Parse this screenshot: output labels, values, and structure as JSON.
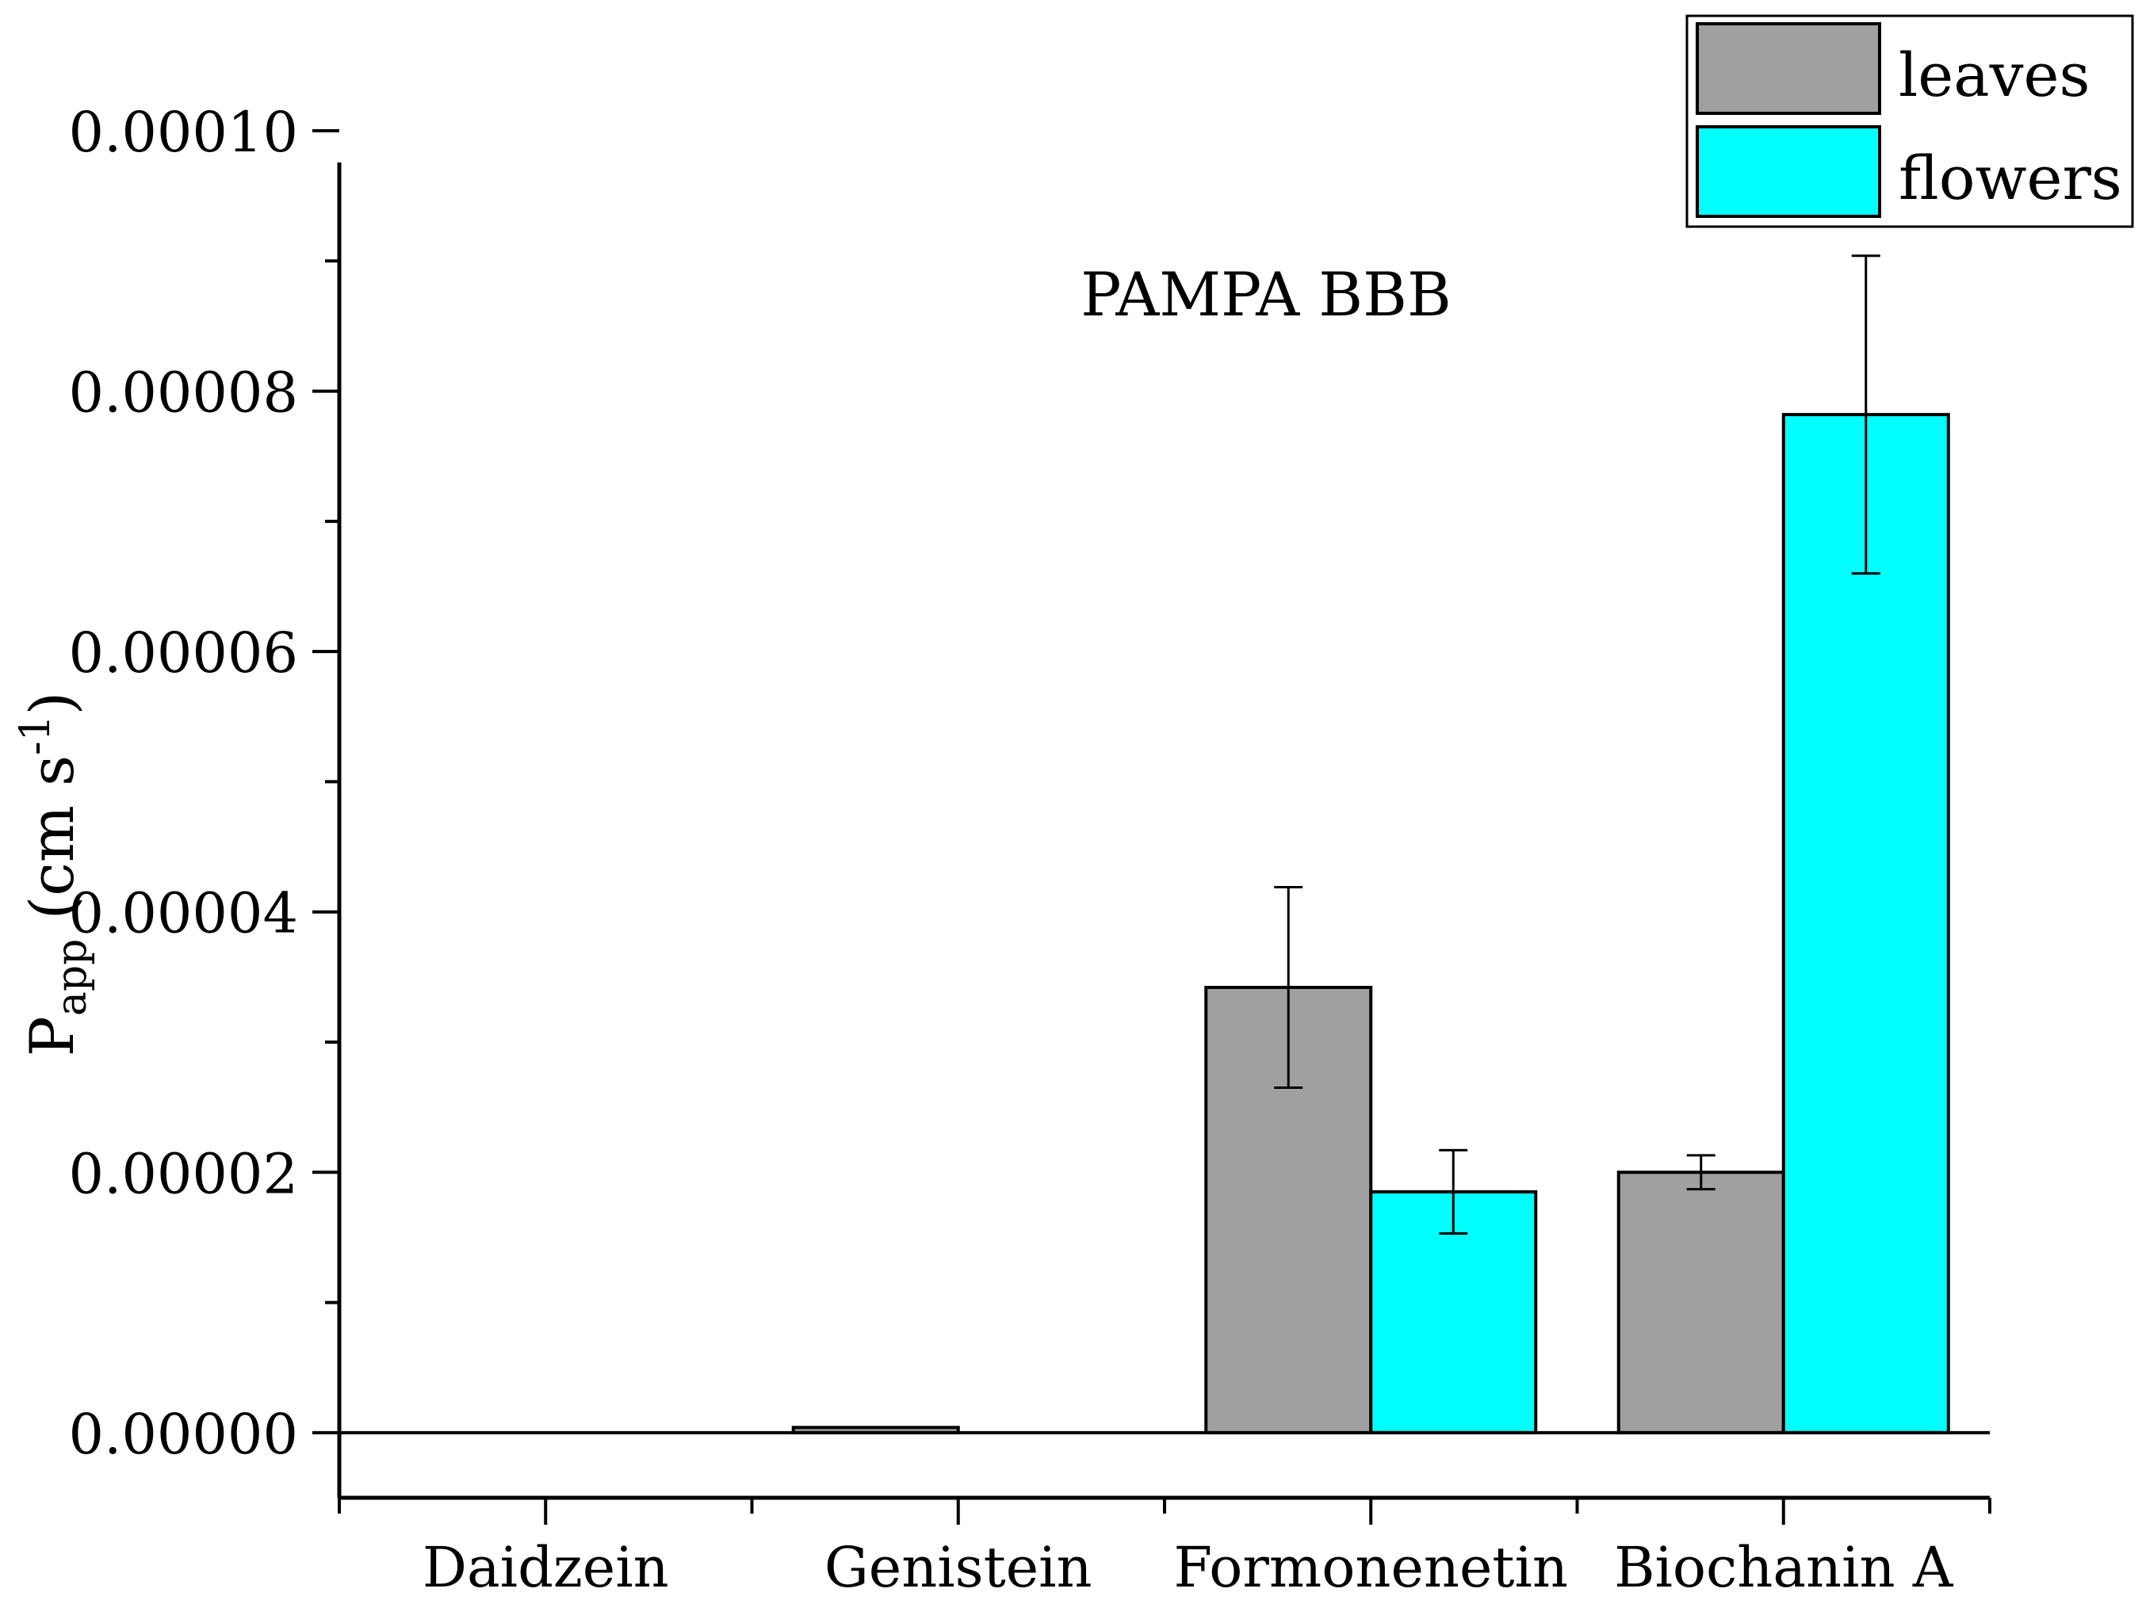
{
  "chart_data": {
    "type": "bar",
    "title": "PAMPA BBB",
    "xlabel": "",
    "ylabel": {
      "main": "P",
      "sub": "app",
      "rest": " (cm s",
      "sup": "-1",
      "close": ")"
    },
    "categories": [
      "Daidzein",
      "Genistein",
      "Formonenetin",
      "Biochanin A"
    ],
    "y_ticks": [
      "0.00000",
      "0.00002",
      "0.00004",
      "0.00006",
      "0.00008",
      "0.00010"
    ],
    "ylim": [
      -5e-06,
      0.0001
    ],
    "series": [
      {
        "name": "leaves",
        "color": "#a0a0a0",
        "values": [
          0,
          4e-07,
          3.42e-05,
          2e-05
        ],
        "errors": [
          0,
          0,
          7.7e-06,
          1.3e-06
        ]
      },
      {
        "name": "flowers",
        "color": "#00ffff",
        "values": [
          0,
          0,
          1.85e-05,
          7.82e-05
        ],
        "errors": [
          0,
          0,
          3.2e-06,
          1.22e-05
        ]
      }
    ],
    "grid": false,
    "legend_position": "top-right"
  }
}
